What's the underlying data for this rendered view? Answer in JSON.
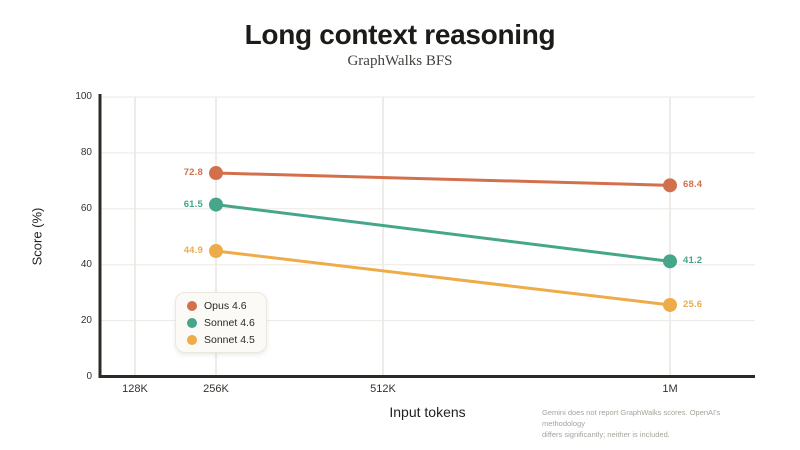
{
  "chart_data": {
    "type": "line",
    "title": "Long context reasoning",
    "subtitle": "GraphWalks BFS",
    "xlabel": "Input tokens",
    "ylabel": "Score (%)",
    "categories": [
      "128K",
      "256K",
      "512K",
      "1M"
    ],
    "ylim": [
      0,
      100
    ],
    "yticks": [
      0,
      20,
      40,
      60,
      80,
      100
    ],
    "grid": true,
    "legend_position": "inside-bottom-left",
    "colors": {
      "axis": "#2e2b27",
      "h_grid": "#edeae4",
      "v_grid": "#dcd9d3",
      "background": "#ffffff"
    },
    "series": [
      {
        "name": "Opus 4.6",
        "color": "#d2704b",
        "points": [
          {
            "category": "256K",
            "value": 72.8,
            "label": "72.8",
            "label_side": "left"
          },
          {
            "category": "1M",
            "value": 68.4,
            "label": "68.4",
            "label_side": "right"
          }
        ]
      },
      {
        "name": "Sonnet 4.6",
        "color": "#45a689",
        "points": [
          {
            "category": "256K",
            "value": 61.5,
            "label": "61.5",
            "label_side": "left"
          },
          {
            "category": "1M",
            "value": 41.2,
            "label": "41.2",
            "label_side": "right"
          }
        ]
      },
      {
        "name": "Sonnet 4.5",
        "color": "#edac47",
        "points": [
          {
            "category": "256K",
            "value": 44.9,
            "label": "44.9",
            "label_side": "left"
          },
          {
            "category": "1M",
            "value": 25.6,
            "label": "25.6",
            "label_side": "right"
          }
        ]
      }
    ],
    "footnote": [
      "Gemini does not report GraphWalks scores. OpenAI's methodology",
      "differs significantly; neither is included."
    ]
  }
}
